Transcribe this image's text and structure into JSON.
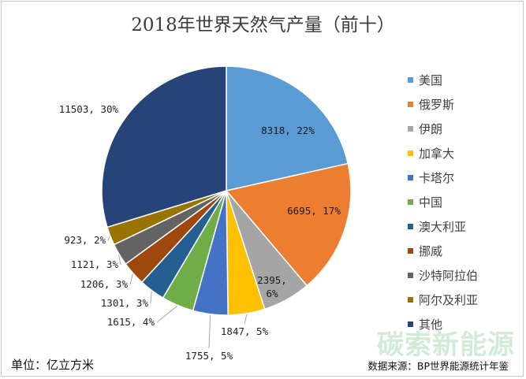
{
  "chart_data": {
    "type": "pie",
    "title": "2018年世界天然气产量（前十）",
    "categories": [
      "美国",
      "俄罗斯",
      "伊朗",
      "加拿大",
      "卡塔尔",
      "中国",
      "澳大利亚",
      "挪威",
      "沙特阿拉伯",
      "阿尔及利亚",
      "其他"
    ],
    "values": [
      8318,
      6695,
      2395,
      1847,
      1755,
      1615,
      1301,
      1206,
      1121,
      923,
      11503
    ],
    "percents": [
      22,
      17,
      6,
      5,
      5,
      4,
      3,
      3,
      3,
      2,
      30
    ],
    "labels": [
      "8318, 22%",
      "6695, 17%",
      "2395, 6%",
      "1847, 5%",
      "1755, 5%",
      "1615, 4%",
      "1301, 3%",
      "1206, 3%",
      "1121, 3%",
      "923, 2%",
      "11503, 30%"
    ],
    "colors": [
      "#5b9bd5",
      "#ed7d31",
      "#a5a5a5",
      "#ffc000",
      "#4472c4",
      "#70ad47",
      "#255e91",
      "#9e480e",
      "#636363",
      "#997300",
      "#264478"
    ],
    "legend_position": "right"
  },
  "unit_label": "单位：亿立方米",
  "source_label": "数据来源：BP世界能源统计年鉴",
  "watermark": "碳索新能源"
}
